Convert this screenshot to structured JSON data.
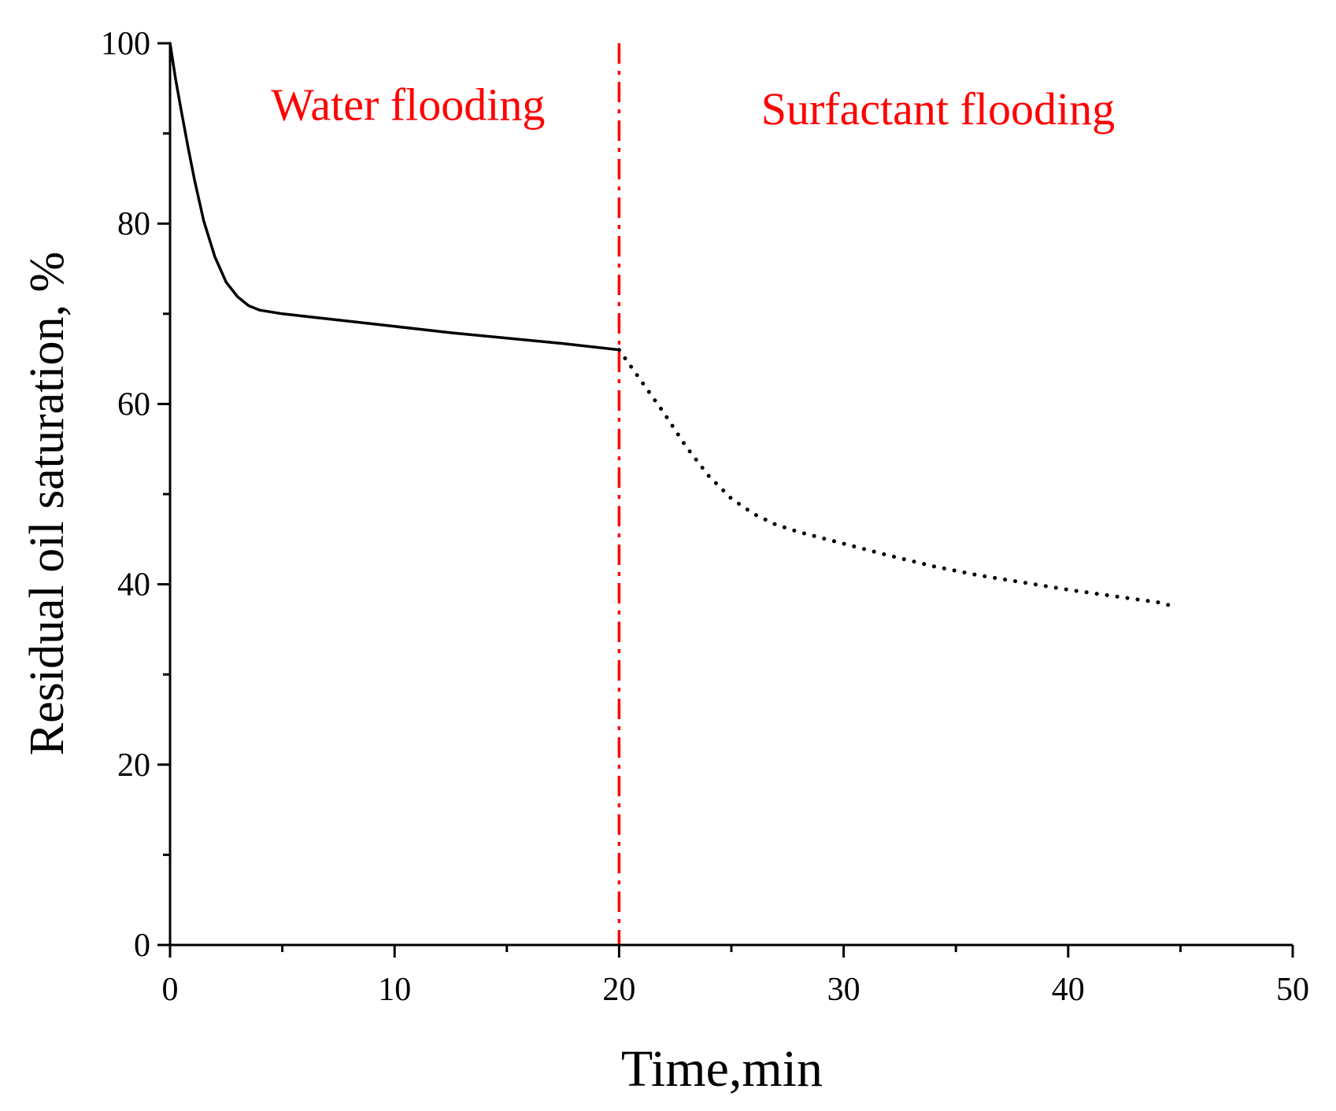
{
  "chart_data": {
    "type": "line",
    "xlabel": "Time,min",
    "ylabel": "Residual oil saturation, %",
    "xlim": [
      0,
      50
    ],
    "ylim": [
      0,
      100
    ],
    "xticks": [
      0,
      10,
      20,
      30,
      40,
      50
    ],
    "yticks": [
      0,
      20,
      40,
      60,
      80,
      100
    ],
    "xtick_labels": [
      "0",
      "10",
      "20",
      "30",
      "40",
      "50"
    ],
    "ytick_labels": [
      "0",
      "20",
      "40",
      "60",
      "80",
      "100"
    ],
    "minor_x_step": 5,
    "minor_y_step": 10,
    "divider_x": 20,
    "divider_color": "#ff0000",
    "annotations": [
      {
        "text": "Water flooding",
        "x": 10.6,
        "y": 91.5,
        "color": "#ff0000"
      },
      {
        "text": "Surfactant flooding",
        "x": 34.2,
        "y": 91.0,
        "color": "#ff0000"
      }
    ],
    "series": [
      {
        "name": "Water flooding",
        "style": "solid",
        "color": "#000000",
        "x": [
          0,
          0.25,
          0.5,
          0.8,
          1.1,
          1.5,
          2.0,
          2.5,
          3.0,
          3.5,
          4.0,
          5.0,
          7.5,
          10,
          12.5,
          15,
          17.5,
          20
        ],
        "y": [
          100,
          96,
          92.5,
          88.5,
          84.7,
          80.3,
          76.3,
          73.5,
          71.9,
          70.9,
          70.4,
          70.0,
          69.3,
          68.6,
          67.9,
          67.3,
          66.7,
          66.0
        ]
      },
      {
        "name": "Surfactant flooding",
        "style": "dotted",
        "color": "#000000",
        "x": [
          20,
          21,
          22,
          23,
          24,
          25,
          26,
          27,
          28,
          30,
          32,
          34,
          36,
          38,
          40,
          42,
          44,
          44.8
        ],
        "y": [
          66.0,
          62.5,
          59.0,
          55.2,
          52.0,
          49.5,
          47.8,
          46.6,
          45.8,
          44.5,
          43.2,
          42.0,
          41.0,
          40.2,
          39.4,
          38.7,
          38.0,
          37.5
        ]
      }
    ]
  }
}
